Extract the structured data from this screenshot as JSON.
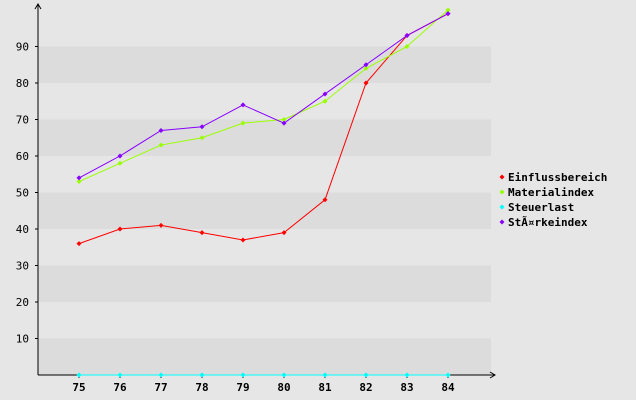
{
  "chart_data": {
    "type": "line",
    "title": "",
    "xlabel": "",
    "ylabel": "",
    "categories": [
      "75",
      "76",
      "77",
      "78",
      "79",
      "80",
      "81",
      "82",
      "83",
      "84"
    ],
    "ylim": [
      0,
      100
    ],
    "yticks": [
      10,
      20,
      30,
      40,
      50,
      60,
      70,
      80,
      90
    ],
    "grid": "horizontal alternating bands",
    "legend_position": "right",
    "series": [
      {
        "name": "Einflussbereich",
        "color": "#ff0000",
        "values": [
          36,
          40,
          41,
          39,
          37,
          39,
          48,
          80,
          93,
          99
        ]
      },
      {
        "name": "Materialindex",
        "color": "#99ff00",
        "values": [
          53,
          58,
          63,
          65,
          69,
          70,
          75,
          84,
          90,
          100
        ]
      },
      {
        "name": "Steuerlast",
        "color": "#00ffff",
        "values": [
          0,
          0,
          0,
          0,
          0,
          0,
          0,
          0,
          0,
          0
        ]
      },
      {
        "name": "StÃ¤rkeindex",
        "color": "#8800ff",
        "values": [
          54,
          60,
          67,
          68,
          74,
          69,
          77,
          85,
          93,
          99
        ]
      }
    ]
  }
}
